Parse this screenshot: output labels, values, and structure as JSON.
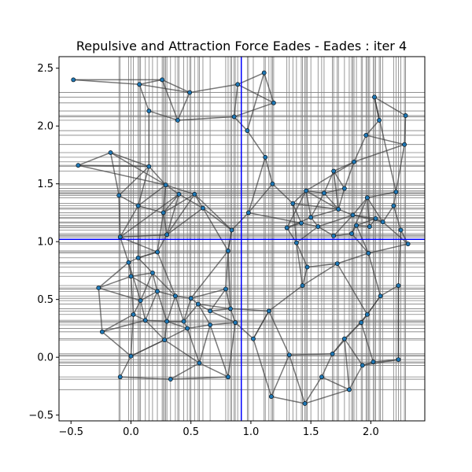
{
  "chart_data": {
    "type": "scatter",
    "title": "Repulsive and Attraction Force Eades - Eades : iter 4",
    "xlabel": "",
    "ylabel": "",
    "xlim": [
      -0.6,
      2.45
    ],
    "ylim": [
      -0.55,
      2.6
    ],
    "x_ticks": [
      -0.5,
      0.0,
      0.5,
      1.0,
      1.5,
      2.0
    ],
    "x_tick_labels": [
      "−0.5",
      "0.0",
      "0.5",
      "1.0",
      "1.5",
      "2.0"
    ],
    "y_ticks": [
      -0.5,
      0.0,
      0.5,
      1.0,
      1.5,
      2.0,
      2.5
    ],
    "y_tick_labels": [
      "−0.5",
      "0.0",
      "0.5",
      "1.0",
      "1.5",
      "2.0",
      "2.5"
    ],
    "grid": "vertical and horizontal lines through node coordinates",
    "crosshair": {
      "x": 0.92,
      "y": 1.02,
      "color": "#0000ff"
    },
    "colors": {
      "node": "#1f77b4",
      "edge": "#404040",
      "grid": "#808080",
      "crosshair": "#0000ff"
    },
    "nodes": [
      [
        -0.48,
        2.4
      ],
      [
        0.07,
        2.36
      ],
      [
        0.26,
        2.4
      ],
      [
        0.49,
        2.29
      ],
      [
        0.15,
        2.13
      ],
      [
        0.39,
        2.05
      ],
      [
        0.89,
        2.36
      ],
      [
        1.11,
        2.46
      ],
      [
        1.19,
        2.2
      ],
      [
        0.86,
        2.08
      ],
      [
        0.97,
        1.96
      ],
      [
        1.12,
        1.73
      ],
      [
        -0.17,
        1.77
      ],
      [
        -0.44,
        1.66
      ],
      [
        0.15,
        1.65
      ],
      [
        -0.1,
        1.4
      ],
      [
        0.06,
        1.31
      ],
      [
        0.29,
        1.49
      ],
      [
        0.27,
        1.25
      ],
      [
        0.53,
        1.41
      ],
      [
        0.4,
        1.41
      ],
      [
        0.6,
        1.29
      ],
      [
        0.84,
        1.1
      ],
      [
        0.98,
        1.25
      ],
      [
        1.18,
        1.5
      ],
      [
        0.3,
        1.06
      ],
      [
        -0.09,
        1.04
      ],
      [
        0.22,
        0.91
      ],
      [
        0.81,
        0.92
      ],
      [
        0.06,
        0.86
      ],
      [
        -0.02,
        0.82
      ],
      [
        0.0,
        0.7
      ],
      [
        0.18,
        0.73
      ],
      [
        -0.27,
        0.6
      ],
      [
        0.08,
        0.49
      ],
      [
        0.22,
        0.57
      ],
      [
        0.37,
        0.53
      ],
      [
        0.5,
        0.51
      ],
      [
        0.79,
        0.59
      ],
      [
        0.02,
        0.37
      ],
      [
        -0.24,
        0.22
      ],
      [
        0.12,
        0.32
      ],
      [
        0.3,
        0.31
      ],
      [
        0.44,
        0.31
      ],
      [
        0.56,
        0.46
      ],
      [
        0.66,
        0.4
      ],
      [
        0.83,
        0.42
      ],
      [
        1.15,
        0.4
      ],
      [
        0.28,
        0.15
      ],
      [
        0.47,
        0.25
      ],
      [
        0.66,
        0.28
      ],
      [
        0.87,
        0.3
      ],
      [
        0.0,
        0.01
      ],
      [
        1.02,
        0.16
      ],
      [
        0.57,
        -0.05
      ],
      [
        -0.09,
        -0.17
      ],
      [
        0.33,
        -0.19
      ],
      [
        0.81,
        -0.17
      ],
      [
        1.17,
        -0.34
      ],
      [
        1.32,
        0.02
      ],
      [
        1.45,
        -0.4
      ],
      [
        1.59,
        -0.17
      ],
      [
        1.68,
        0.03
      ],
      [
        1.82,
        -0.28
      ],
      [
        1.78,
        0.16
      ],
      [
        1.92,
        0.3
      ],
      [
        1.97,
        0.37
      ],
      [
        1.93,
        -0.07
      ],
      [
        2.02,
        -0.04
      ],
      [
        2.23,
        -0.02
      ],
      [
        2.08,
        0.53
      ],
      [
        2.23,
        0.62
      ],
      [
        1.98,
        0.9
      ],
      [
        1.72,
        0.81
      ],
      [
        1.43,
        0.62
      ],
      [
        1.47,
        0.78
      ],
      [
        1.38,
        0.99
      ],
      [
        1.3,
        1.12
      ],
      [
        1.5,
        1.21
      ],
      [
        1.56,
        1.13
      ],
      [
        1.69,
        1.05
      ],
      [
        1.84,
        1.07
      ],
      [
        1.88,
        1.14
      ],
      [
        1.35,
        1.33
      ],
      [
        1.46,
        1.44
      ],
      [
        1.61,
        1.42
      ],
      [
        1.69,
        1.61
      ],
      [
        1.78,
        1.46
      ],
      [
        1.86,
        1.69
      ],
      [
        1.73,
        1.28
      ],
      [
        1.85,
        1.23
      ],
      [
        1.97,
        1.38
      ],
      [
        2.1,
        1.17
      ],
      [
        2.19,
        1.31
      ],
      [
        2.21,
        1.43
      ],
      [
        2.31,
        0.98
      ],
      [
        2.25,
        1.1
      ],
      [
        2.04,
        1.2
      ],
      [
        1.96,
        1.92
      ],
      [
        2.07,
        2.05
      ],
      [
        2.03,
        2.25
      ],
      [
        2.29,
        2.09
      ],
      [
        2.28,
        1.84
      ],
      [
        1.99,
        1.13
      ],
      [
        1.42,
        1.16
      ]
    ],
    "edges": [
      [
        0,
        1
      ],
      [
        0,
        2
      ],
      [
        1,
        2
      ],
      [
        1,
        4
      ],
      [
        2,
        3
      ],
      [
        2,
        5
      ],
      [
        4,
        5
      ],
      [
        3,
        6
      ],
      [
        3,
        1
      ],
      [
        5,
        9
      ],
      [
        6,
        7
      ],
      [
        7,
        8
      ],
      [
        7,
        10
      ],
      [
        6,
        9
      ],
      [
        8,
        9
      ],
      [
        9,
        10
      ],
      [
        10,
        11
      ],
      [
        6,
        8
      ],
      [
        4,
        14
      ],
      [
        5,
        3
      ],
      [
        12,
        13
      ],
      [
        12,
        14
      ],
      [
        13,
        14
      ],
      [
        12,
        15
      ],
      [
        12,
        17
      ],
      [
        14,
        17
      ],
      [
        14,
        16
      ],
      [
        15,
        16
      ],
      [
        15,
        26
      ],
      [
        16,
        18
      ],
      [
        17,
        18
      ],
      [
        17,
        19
      ],
      [
        17,
        20
      ],
      [
        18,
        19
      ],
      [
        18,
        20
      ],
      [
        19,
        21
      ],
      [
        20,
        21
      ],
      [
        19,
        22
      ],
      [
        21,
        22
      ],
      [
        22,
        23
      ],
      [
        23,
        24
      ],
      [
        11,
        24
      ],
      [
        11,
        23
      ],
      [
        14,
        15
      ],
      [
        13,
        17
      ],
      [
        16,
        17
      ],
      [
        20,
        25
      ],
      [
        18,
        25
      ],
      [
        16,
        26
      ],
      [
        26,
        25
      ],
      [
        25,
        27
      ],
      [
        26,
        27
      ],
      [
        27,
        29
      ],
      [
        26,
        30
      ],
      [
        29,
        30
      ],
      [
        30,
        31
      ],
      [
        29,
        32
      ],
      [
        31,
        32
      ],
      [
        33,
        31
      ],
      [
        33,
        34
      ],
      [
        34,
        35
      ],
      [
        31,
        35
      ],
      [
        32,
        35
      ],
      [
        35,
        36
      ],
      [
        36,
        37
      ],
      [
        32,
        36
      ],
      [
        37,
        38
      ],
      [
        28,
        38
      ],
      [
        28,
        22
      ],
      [
        28,
        21
      ],
      [
        34,
        39
      ],
      [
        39,
        40
      ],
      [
        40,
        41
      ],
      [
        39,
        41
      ],
      [
        41,
        42
      ],
      [
        42,
        43
      ],
      [
        43,
        44
      ],
      [
        44,
        45
      ],
      [
        45,
        46
      ],
      [
        46,
        38
      ],
      [
        37,
        44
      ],
      [
        36,
        43
      ],
      [
        35,
        42
      ],
      [
        40,
        52
      ],
      [
        52,
        55
      ],
      [
        52,
        48
      ],
      [
        48,
        42
      ],
      [
        48,
        49
      ],
      [
        49,
        50
      ],
      [
        50,
        51
      ],
      [
        51,
        46
      ],
      [
        51,
        53
      ],
      [
        53,
        47
      ],
      [
        47,
        46
      ],
      [
        48,
        54
      ],
      [
        54,
        56
      ],
      [
        55,
        56
      ],
      [
        56,
        57
      ],
      [
        57,
        54
      ],
      [
        57,
        50
      ],
      [
        57,
        51
      ],
      [
        53,
        58
      ],
      [
        58,
        59
      ],
      [
        59,
        60
      ],
      [
        60,
        61
      ],
      [
        61,
        62
      ],
      [
        62,
        59
      ],
      [
        61,
        63
      ],
      [
        63,
        67
      ],
      [
        67,
        64
      ],
      [
        64,
        65
      ],
      [
        65,
        66
      ],
      [
        66,
        62
      ],
      [
        63,
        64
      ],
      [
        67,
        68
      ],
      [
        68,
        69
      ],
      [
        69,
        71
      ],
      [
        70,
        71
      ],
      [
        70,
        66
      ],
      [
        65,
        70
      ],
      [
        72,
        73
      ],
      [
        73,
        66
      ],
      [
        72,
        70
      ],
      [
        73,
        74
      ],
      [
        74,
        75
      ],
      [
        75,
        76
      ],
      [
        76,
        77
      ],
      [
        77,
        78
      ],
      [
        78,
        79
      ],
      [
        79,
        80
      ],
      [
        80,
        81
      ],
      [
        81,
        82
      ],
      [
        82,
        72
      ],
      [
        76,
        83
      ],
      [
        83,
        84
      ],
      [
        84,
        85
      ],
      [
        85,
        86
      ],
      [
        86,
        87
      ],
      [
        87,
        88
      ],
      [
        88,
        84
      ],
      [
        83,
        89
      ],
      [
        89,
        90
      ],
      [
        90,
        91
      ],
      [
        91,
        92
      ],
      [
        92,
        93
      ],
      [
        93,
        94
      ],
      [
        94,
        91
      ],
      [
        92,
        95
      ],
      [
        95,
        96
      ],
      [
        96,
        93
      ],
      [
        95,
        72
      ],
      [
        72,
        81
      ],
      [
        97,
        90
      ],
      [
        97,
        92
      ],
      [
        88,
        98
      ],
      [
        98,
        99
      ],
      [
        99,
        100
      ],
      [
        100,
        101
      ],
      [
        101,
        102
      ],
      [
        102,
        88
      ],
      [
        102,
        94
      ],
      [
        98,
        102
      ],
      [
        100,
        99
      ],
      [
        103,
        82
      ],
      [
        103,
        97
      ],
      [
        104,
        83
      ],
      [
        104,
        77
      ],
      [
        104,
        79
      ],
      [
        24,
        83
      ],
      [
        23,
        104
      ],
      [
        47,
        74
      ],
      [
        47,
        53
      ],
      [
        58,
        60
      ],
      [
        60,
        63
      ],
      [
        59,
        47
      ],
      [
        62,
        64
      ],
      [
        67,
        69
      ],
      [
        68,
        65
      ],
      [
        71,
        96
      ],
      [
        69,
        71
      ],
      [
        84,
        89
      ],
      [
        85,
        89
      ],
      [
        86,
        89
      ],
      [
        87,
        89
      ],
      [
        78,
        89
      ],
      [
        79,
        90
      ],
      [
        80,
        90
      ],
      [
        81,
        91
      ],
      [
        82,
        97
      ],
      [
        78,
        85
      ],
      [
        84,
        78
      ],
      [
        77,
        84
      ],
      [
        76,
        79
      ],
      [
        75,
        73
      ],
      [
        74,
        76
      ],
      [
        85,
        87
      ],
      [
        86,
        88
      ],
      [
        90,
        92
      ],
      [
        91,
        103
      ],
      [
        94,
        100
      ],
      [
        30,
        34
      ],
      [
        29,
        27
      ],
      [
        27,
        36
      ],
      [
        31,
        39
      ],
      [
        34,
        41
      ],
      [
        35,
        41
      ],
      [
        36,
        42
      ],
      [
        37,
        43
      ],
      [
        38,
        45
      ],
      [
        44,
        46
      ],
      [
        42,
        49
      ],
      [
        43,
        49
      ],
      [
        44,
        50
      ],
      [
        45,
        51
      ],
      [
        49,
        54
      ],
      [
        50,
        54
      ],
      [
        41,
        48
      ],
      [
        39,
        52
      ],
      [
        52,
        48
      ],
      [
        40,
        33
      ],
      [
        22,
        28
      ],
      [
        19,
        25
      ],
      [
        21,
        25
      ],
      [
        20,
        26
      ],
      [
        18,
        27
      ],
      [
        16,
        29
      ],
      [
        28,
        37
      ],
      [
        28,
        46
      ],
      [
        32,
        34
      ],
      [
        33,
        30
      ]
    ]
  }
}
